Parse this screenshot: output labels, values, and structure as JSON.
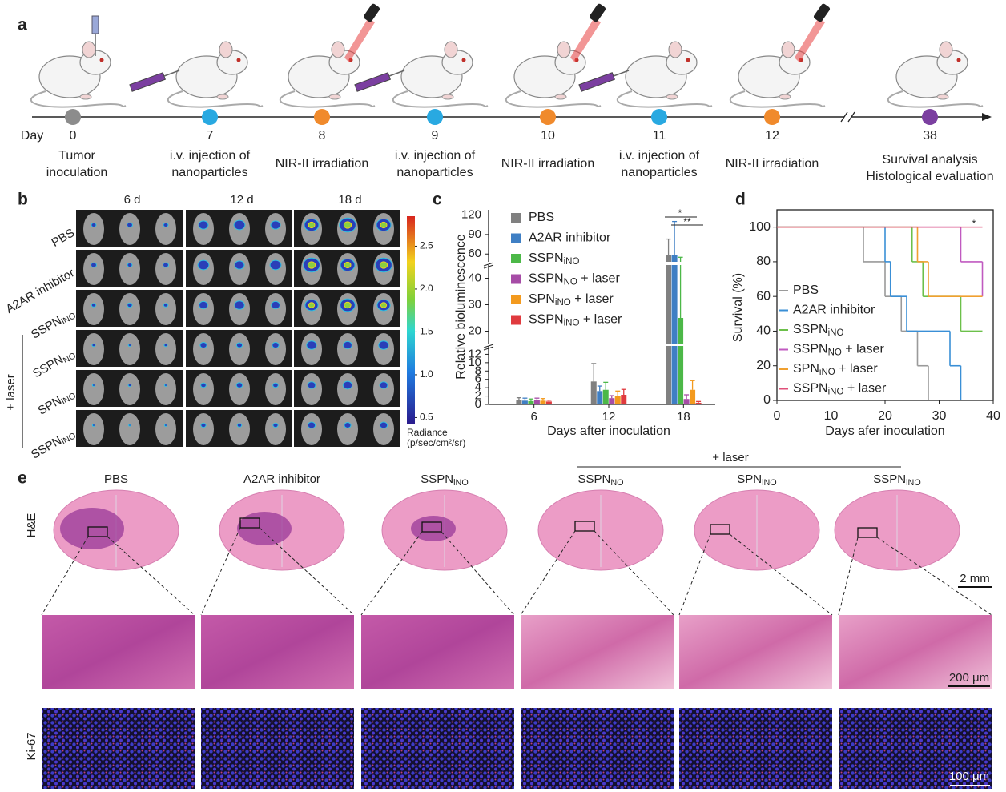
{
  "panel_labels": [
    "a",
    "b",
    "c",
    "d",
    "e"
  ],
  "timeline": {
    "axis_label": "Day",
    "events": [
      {
        "day": "0",
        "color": "#8c8c8c",
        "label": [
          "Tumor",
          "inoculation"
        ]
      },
      {
        "day": "7",
        "color": "#29a9e1",
        "label": [
          "i.v. injection of",
          "nanoparticles"
        ]
      },
      {
        "day": "8",
        "color": "#f08a2c",
        "label": [
          "NIR-II irradiation"
        ]
      },
      {
        "day": "9",
        "color": "#29a9e1",
        "label": [
          "i.v. injection of",
          "nanoparticles"
        ]
      },
      {
        "day": "10",
        "color": "#f08a2c",
        "label": [
          "NIR-II irradiation"
        ]
      },
      {
        "day": "11",
        "color": "#29a9e1",
        "label": [
          "i.v. injection of",
          "nanoparticles"
        ]
      },
      {
        "day": "12",
        "color": "#f08a2c",
        "label": [
          "NIR-II irradiation"
        ]
      },
      {
        "day": "38",
        "color": "#7b3fa0",
        "label": [
          "Survival analysis",
          "Histological evaluation"
        ]
      }
    ]
  },
  "imaging": {
    "columns": [
      "6 d",
      "12 d",
      "18 d"
    ],
    "rows": [
      "PBS",
      "A2AR inhibitor",
      "SSPNiNO",
      "SSPNNO",
      "SPNiNO",
      "SSPNiNO"
    ],
    "group_label": "+ laser",
    "colorbar": {
      "title": "Radiance",
      "unit": "(p/sec/cm²/sr)",
      "lim": [
        0.42,
        2.85
      ],
      "ticks": [
        0.5,
        {
          "value": 1,
          "label": "1.0"
        },
        1.5,
        {
          "value": 2,
          "label": "2.0"
        },
        2.5
      ]
    }
  },
  "chart_data": [
    {
      "type": "bar",
      "x_label": "Days after inoculation",
      "y_label": "Relative bioluminescence",
      "categories": [
        "6",
        "12",
        "18"
      ],
      "error_bars": true,
      "y_segments": [
        {
          "ylim": [
            0,
            14
          ],
          "yticks": [
            0,
            2,
            4,
            6,
            8,
            10,
            12
          ]
        },
        {
          "ylim": [
            15,
            45
          ],
          "yticks": [
            20,
            30,
            40
          ]
        },
        {
          "ylim": [
            48,
            128
          ],
          "yticks": [
            60,
            90,
            120
          ]
        }
      ],
      "series": [
        {
          "name": "PBS",
          "color": "#808080",
          "values": [
            1.0,
            5.5,
            58
          ],
          "errors": [
            0.6,
            4.3,
            25
          ]
        },
        {
          "name": "A2AR inhibitor",
          "color": "#3f7fc4",
          "values": [
            0.9,
            3.2,
            58
          ],
          "errors": [
            0.6,
            1.2,
            52
          ]
        },
        {
          "name": "SSPNiNO",
          "color": "#4cb848",
          "values": [
            0.8,
            3.5,
            25
          ],
          "errors": [
            0.5,
            1.8,
            30
          ]
        },
        {
          "name": "SSPNNO + laser",
          "color": "#a64ca6",
          "values": [
            1.0,
            1.5,
            1.3
          ],
          "errors": [
            0.5,
            0.6,
            1.0
          ]
        },
        {
          "name": "SPNiNO + laser",
          "color": "#f39a1e",
          "values": [
            0.9,
            2.0,
            3.5
          ],
          "errors": [
            0.5,
            1.2,
            2.2
          ]
        },
        {
          "name": "SSPNiNO + laser",
          "color": "#e03a3e",
          "values": [
            0.7,
            2.3,
            0.4
          ],
          "errors": [
            0.3,
            1.3,
            0.3
          ]
        }
      ],
      "annotations": [
        "*",
        "**"
      ]
    },
    {
      "type": "line",
      "step": true,
      "x_label": "Days afer inoculation",
      "y_label": "Survival (%)",
      "xlim": [
        0,
        40
      ],
      "ylim": [
        0,
        110
      ],
      "xticks": [
        0,
        10,
        20,
        30,
        40
      ],
      "yticks": [
        0,
        20,
        40,
        60,
        80,
        100
      ],
      "series": [
        {
          "name": "PBS",
          "color": "#9a9a9a",
          "x": [
            0,
            16,
            20,
            23,
            26,
            28
          ],
          "values": [
            100,
            80,
            60,
            40,
            20,
            0
          ]
        },
        {
          "name": "A2AR inhibitor",
          "color": "#3a8fd6",
          "x": [
            0,
            20,
            21,
            24,
            32,
            34
          ],
          "values": [
            100,
            80,
            60,
            40,
            20,
            0
          ]
        },
        {
          "name": "SSPNiNO",
          "color": "#6cc04a",
          "x": [
            0,
            25,
            27,
            34,
            38
          ],
          "values": [
            100,
            80,
            60,
            40,
            40
          ]
        },
        {
          "name": "SSPNNO + laser",
          "color": "#c05ac0",
          "x": [
            0,
            34,
            38
          ],
          "values": [
            100,
            80,
            60
          ]
        },
        {
          "name": "SPNiNO + laser",
          "color": "#f0a030",
          "x": [
            0,
            26,
            28,
            38
          ],
          "values": [
            100,
            80,
            60,
            60
          ]
        },
        {
          "name": "SSPNiNO + laser",
          "color": "#e0507a",
          "x": [
            0,
            38
          ],
          "values": [
            100,
            100
          ]
        }
      ],
      "annotations": [
        "*"
      ]
    }
  ],
  "histology": {
    "columns": [
      "PBS",
      "A2AR inhibitor",
      "SSPNiNO",
      "SSPNNO",
      "SPNiNO",
      "SSPNiNO"
    ],
    "group_label": "+ laser",
    "rows": [
      "H&E",
      "Ki-67"
    ],
    "scale_bars": [
      "2 mm",
      "200 μm",
      "100 μm"
    ]
  }
}
